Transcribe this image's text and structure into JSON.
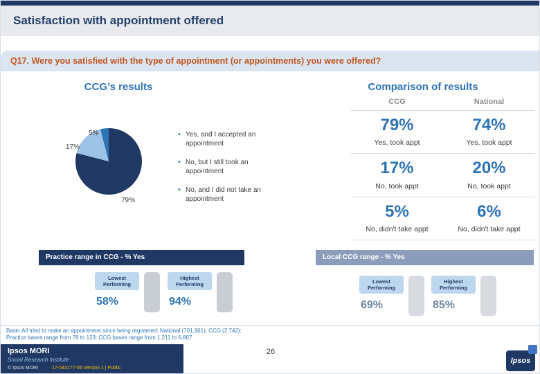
{
  "slide": {
    "title": "Satisfaction with appointment offered",
    "question": "Q17. Were you satisfied with the type of appointment (or appointments) you were offered?"
  },
  "ccg_results": {
    "heading": "CCG’s results"
  },
  "chart_data": {
    "type": "pie",
    "title": "CCG’s results",
    "labels": [
      "Yes, and I accepted an appointment",
      "No, but I still took an appointment",
      "No, and I did not take an appointment"
    ],
    "values": [
      79,
      17,
      5
    ],
    "value_labels": [
      "79%",
      "17%",
      "5%"
    ],
    "colors": [
      "#203864",
      "#9dc3e6",
      "#2e75b6"
    ],
    "legend_position": "right"
  },
  "comparison": {
    "heading": "Comparison of results",
    "columns": [
      "CCG",
      "National"
    ],
    "rows": [
      {
        "ccg": "79%",
        "national": "74%",
        "ccg_label": "Yes, took appt",
        "national_label": "Yes, took appt"
      },
      {
        "ccg": "17%",
        "national": "20%",
        "ccg_label": "No, took appt",
        "national_label": "No, took appt"
      },
      {
        "ccg": "5%",
        "national": "6%",
        "ccg_label": "No, didn't take appt",
        "national_label": "No, didn't take appt"
      }
    ]
  },
  "ranges": {
    "practice": {
      "heading": "Practice range in CCG - % Yes",
      "lowest_label": "Lowest Performing",
      "highest_label": "Highest Performing",
      "lowest": "58%",
      "highest": "94%"
    },
    "local": {
      "heading": "Local CCG range - % Yes",
      "lowest_label": "Lowest Performing",
      "highest_label": "Highest Performing",
      "lowest": "69%",
      "highest": "85%"
    }
  },
  "base_note": {
    "line1": "Base: All tried to make an appointment since being registered: National (701,961): CCG (2,742):",
    "line2": "Practice bases range from 78 to 123: CCG bases range from 1,211 to 6,807"
  },
  "footer": {
    "logo_line1": "Ipsos MORI",
    "logo_line2": "Social Research Institute",
    "copyright": "© Ipsos MORI",
    "doc_ref": "17-043177-06 Version 1 | Public",
    "page_number": "26",
    "brand": "Ipsos"
  },
  "colors": {
    "navy": "#1f3864",
    "accent_blue": "#2e74b5",
    "question_orange": "#c0561d",
    "band_light_blue": "#dbe5f2",
    "tag_light_blue": "#bdd7ee",
    "ref_yellow": "#ffc000"
  }
}
